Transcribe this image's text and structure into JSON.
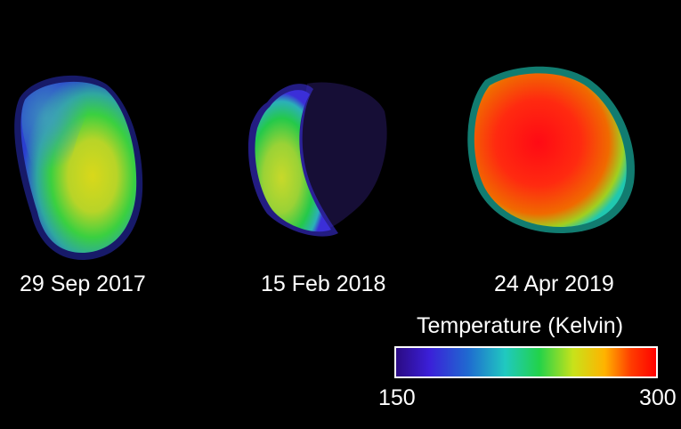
{
  "panels": [
    {
      "date": "29 Sep 2017"
    },
    {
      "date": "15 Feb 2018"
    },
    {
      "date": "24 Apr 2019"
    }
  ],
  "colorbar": {
    "title": "Temperature (Kelvin)",
    "min_label": "150",
    "max_label": "300",
    "min": 150,
    "max": 300,
    "colors": [
      "#2a0a80",
      "#3b1fd8",
      "#1f6bd0",
      "#20c9c0",
      "#22d24a",
      "#c8e21a",
      "#ffb300",
      "#ff3d00",
      "#ff0000"
    ]
  }
}
